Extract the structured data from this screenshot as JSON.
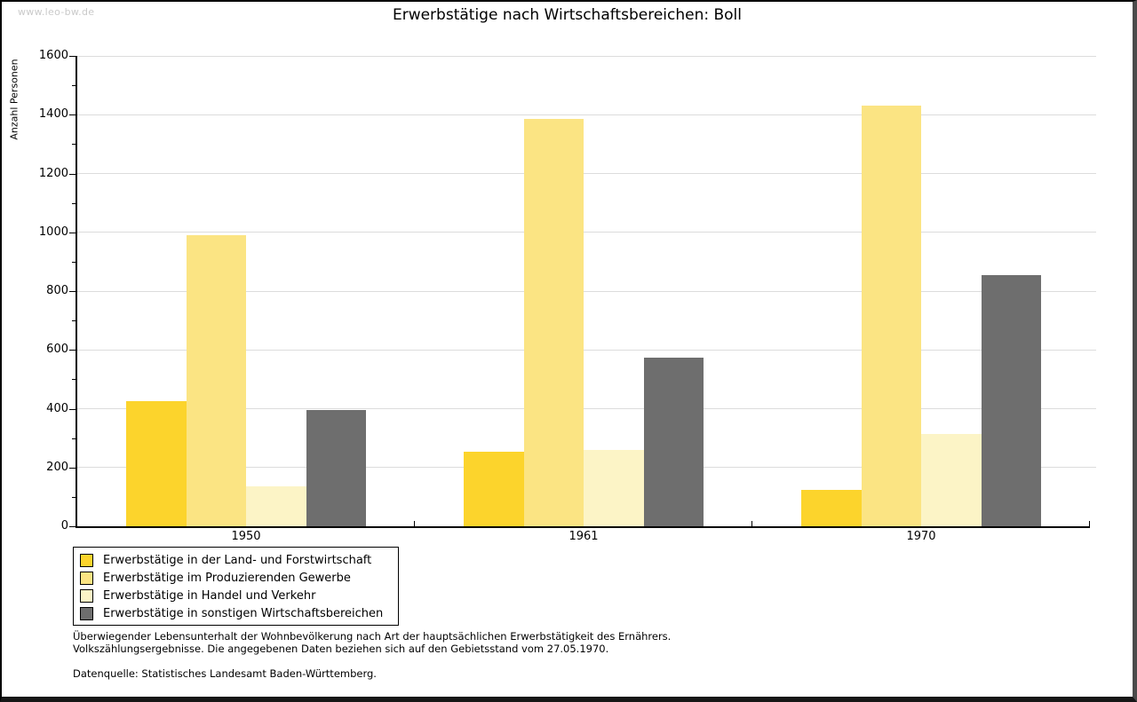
{
  "watermark": "www.leo-bw.de",
  "chart_data": {
    "type": "bar",
    "title": "Erwerbstätige nach Wirtschaftsbereichen: Boll",
    "ylabel": "Anzahl Personen",
    "xlabel": "",
    "ylim": [
      0,
      1600
    ],
    "y_major_step": 200,
    "y_minor_step": 100,
    "grid": "horizontal",
    "gridline_color": "#dcdcdc",
    "legend_position": "bottom-left",
    "categories": [
      "1950",
      "1961",
      "1970"
    ],
    "series": [
      {
        "key": "land-forstwirtschaft",
        "name": "Erwerbstätige in der Land- und Forstwirtschaft",
        "color": "#fcd42c",
        "values": [
          425,
          255,
          125
        ]
      },
      {
        "key": "produzierendes-gewerbe",
        "name": "Erwerbstätige im Produzierenden Gewerbe",
        "color": "#fbe483",
        "values": [
          990,
          1385,
          1430
        ]
      },
      {
        "key": "handel-verkehr",
        "name": "Erwerbstätige in Handel und Verkehr",
        "color": "#fcf4c6",
        "values": [
          135,
          260,
          315
        ]
      },
      {
        "key": "sonstige-wirtschaftsbereiche",
        "name": "Erwerbstätige in sonstigen Wirtschaftsbereichen",
        "color": "#6e6e6e",
        "values": [
          395,
          575,
          855
        ]
      }
    ]
  },
  "footnotes": {
    "line1": "Überwiegender Lebensunterhalt der Wohnbevölkerung nach Art der hauptsächlichen Erwerbstätigkeit des Ernährers.",
    "line2": "Volkszählungsergebnisse. Die angegebenen Daten beziehen sich auf den Gebietsstand vom 27.05.1970.",
    "source": "Datenquelle: Statistisches Landesamt Baden-Württemberg."
  }
}
